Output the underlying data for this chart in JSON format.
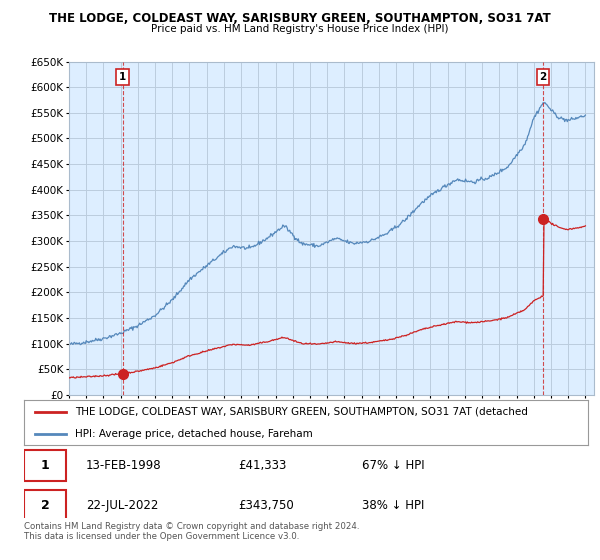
{
  "title_line1": "THE LODGE, COLDEAST WAY, SARISBURY GREEN, SOUTHAMPTON, SO31 7AT",
  "title_line2": "Price paid vs. HM Land Registry's House Price Index (HPI)",
  "ylim": [
    0,
    650000
  ],
  "xlim_start": 1995.0,
  "xlim_end": 2025.5,
  "hpi_color": "#5588bb",
  "property_color": "#cc2222",
  "sale1_x": 1998.12,
  "sale1_y": 41333,
  "sale2_x": 2022.55,
  "sale2_y": 343750,
  "legend_property": "THE LODGE, COLDEAST WAY, SARISBURY GREEN, SOUTHAMPTON, SO31 7AT (detached",
  "legend_hpi": "HPI: Average price, detached house, Fareham",
  "annotation1_date": "13-FEB-1998",
  "annotation1_price": "£41,333",
  "annotation1_hpi": "67% ↓ HPI",
  "annotation2_date": "22-JUL-2022",
  "annotation2_price": "£343,750",
  "annotation2_hpi": "38% ↓ HPI",
  "footer": "Contains HM Land Registry data © Crown copyright and database right 2024.\nThis data is licensed under the Open Government Licence v3.0.",
  "plot_bg_color": "#ddeeff",
  "background_color": "#ffffff",
  "grid_color": "#bbccdd"
}
